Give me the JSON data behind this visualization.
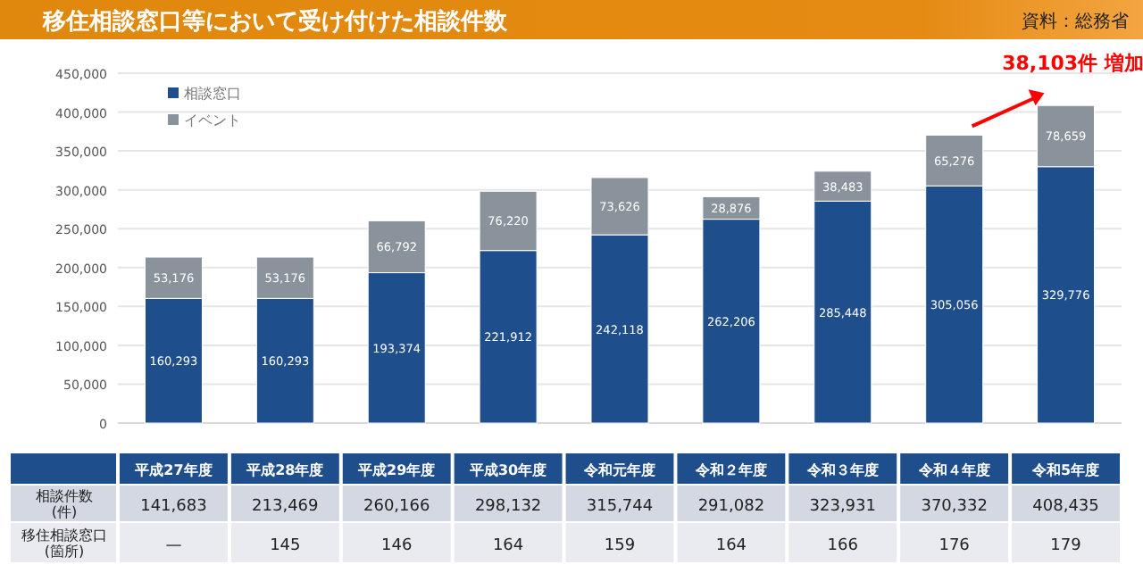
{
  "chart_data": {
    "type": "bar",
    "stacked": true,
    "title": "移住相談窓口等において受け付けた相談件数",
    "categories": [
      "平成27年度",
      "平成28年度",
      "平成29年度",
      "平成30年度",
      "令和元年度",
      "令和２年度",
      "令和３年度",
      "令和４年度",
      "令和5年度"
    ],
    "series": [
      {
        "name": "相談窓口",
        "color": "#1f4e8c",
        "values": [
          160293,
          160293,
          193374,
          221912,
          242118,
          262206,
          285448,
          305056,
          329776
        ],
        "value_labels": [
          "160,293",
          "160,293",
          "193,374",
          "221,912",
          "242,118",
          "262,206",
          "285,448",
          "305,056",
          "329,776"
        ]
      },
      {
        "name": "イベント",
        "color": "#8a939c",
        "values": [
          53176,
          53176,
          66792,
          76220,
          73626,
          28876,
          38483,
          65276,
          78659
        ],
        "value_labels": [
          "53,176",
          "53,176",
          "66,792",
          "76,220",
          "73,626",
          "28,876",
          "38,483",
          "65,276",
          "78,659"
        ]
      }
    ],
    "ylim": [
      0,
      450000
    ],
    "yticks": [
      {
        "value": 0,
        "label": "0"
      },
      {
        "value": 50000,
        "label": "50,000"
      },
      {
        "value": 100000,
        "label": "100,000"
      },
      {
        "value": 150000,
        "label": "150,000"
      },
      {
        "value": 200000,
        "label": "200,000"
      },
      {
        "value": 250000,
        "label": "250,000"
      },
      {
        "value": 300000,
        "label": "300,000"
      },
      {
        "value": 350000,
        "label": "350,000"
      },
      {
        "value": 400000,
        "label": "400,000"
      },
      {
        "value": 450000,
        "label": "450,000"
      }
    ],
    "grid": "y",
    "legend": "top left",
    "annotations": [
      "資料：総務省",
      {
        "text": "38,103件 増加",
        "x": "令和5年度",
        "y": 408435
      },
      "相談件数\n(件)",
      "移住相談窓口\n(箇所)",
      "—",
      "145",
      "146",
      "164",
      "159",
      "164",
      "166",
      "176",
      "179",
      "141,683",
      "213,469",
      "260,166",
      "298,132",
      "315,744",
      "291,082",
      "323,931",
      "370,332",
      "408,435"
    ]
  }
}
